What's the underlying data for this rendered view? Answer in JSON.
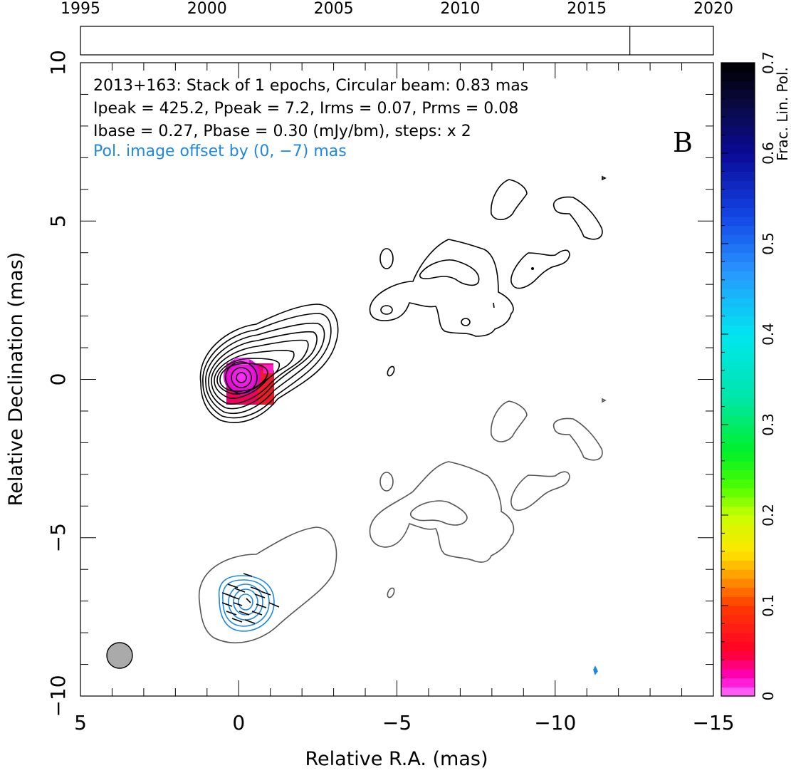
{
  "chart_data": {
    "type": "contour",
    "title_lines": [
      "2013+163: Stack of 1 epochs, Circular beam: 0.83 mas",
      "Ipeak = 425.2, Ppeak = 7.2, Irms = 0.07, Prms = 0.08",
      "Ibase = 0.27, Pbase = 0.30 (mJy/bm), steps: x 2"
    ],
    "pol_offset_note": "Pol. image offset by (0, −7) mas",
    "panel_label": "B",
    "xlabel": "Relative R.A. (mas)",
    "ylabel": "Relative Declination (mas)",
    "xlim": [
      5,
      -15
    ],
    "ylim": [
      -10,
      10
    ],
    "x_ticks": [
      5,
      0,
      -5,
      -10,
      -15
    ],
    "x_tick_labels": [
      "5",
      "0",
      "−5",
      "−10",
      "−15"
    ],
    "y_ticks": [
      -10,
      -5,
      0,
      5,
      10
    ],
    "y_tick_labels": [
      "−10",
      "−5",
      "0",
      "5",
      "10"
    ],
    "timeline": {
      "range": [
        1995,
        2020
      ],
      "ticks": [
        1995,
        2000,
        2005,
        2010,
        2015,
        2020
      ],
      "epochs": [
        2016.7
      ]
    },
    "colorbar": {
      "label": "Frac. Lin. Pol.",
      "range": [
        0,
        0.7
      ],
      "ticks": [
        0,
        0.1,
        0.2,
        0.3,
        0.4,
        0.5,
        0.6,
        0.7
      ],
      "tick_labels": [
        "0",
        "0.1",
        "0.2",
        "0.3",
        "0.4",
        "0.5",
        "0.6",
        "0.7"
      ]
    },
    "beam_diameter_mas": 0.83,
    "colors": {
      "total_intensity_contours": "#000000",
      "offset_total_intensity_contours": "#555555",
      "polarized_contours": "#1e88e5",
      "beam_fill": "#aaaaaa",
      "offset_note_text": "#1e88e5"
    }
  }
}
